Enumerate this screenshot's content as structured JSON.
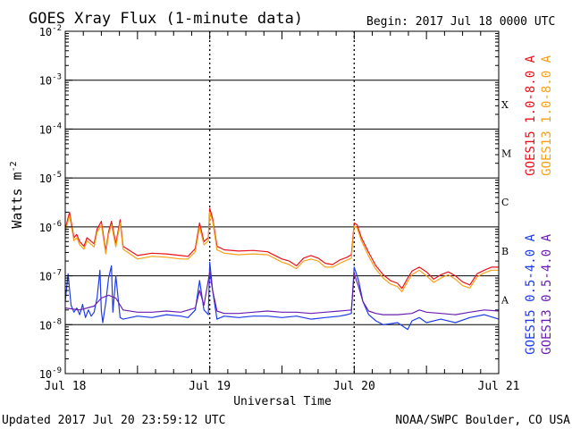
{
  "chart_data": {
    "type": "line",
    "title": "GOES Xray Flux (1-minute data)",
    "begin_label": "Begin:  2017 Jul 18 0000 UTC",
    "ylabel": "Watts m",
    "ylabel_exponent": "-2",
    "xlabel": "Universal Time",
    "y_scale": "log",
    "ylim": [
      1e-09,
      0.01
    ],
    "y_ticks": [
      {
        "base": "10",
        "exp": "-2",
        "value": 0.01
      },
      {
        "base": "10",
        "exp": "-3",
        "value": 0.001
      },
      {
        "base": "10",
        "exp": "-4",
        "value": 0.0001
      },
      {
        "base": "10",
        "exp": "-5",
        "value": 1e-05
      },
      {
        "base": "10",
        "exp": "-6",
        "value": 1e-06
      },
      {
        "base": "10",
        "exp": "-7",
        "value": 1e-07
      },
      {
        "base": "10",
        "exp": "-8",
        "value": 1e-08
      },
      {
        "base": "10",
        "exp": "-9",
        "value": 1e-09
      }
    ],
    "xlim_days": [
      0,
      3
    ],
    "x_ticks": [
      {
        "label": "Jul 18",
        "day": 0
      },
      {
        "label": "Jul 19",
        "day": 1
      },
      {
        "label": "Jul 20",
        "day": 2
      },
      {
        "label": "Jul 21",
        "day": 3
      }
    ],
    "flare_classes": [
      {
        "label": "X",
        "value": 0.00032
      },
      {
        "label": "M",
        "value": 3.2e-05
      },
      {
        "label": "C",
        "value": 3.2e-06
      },
      {
        "label": "B",
        "value": 3.2e-07
      },
      {
        "label": "A",
        "value": 3.2e-08
      }
    ],
    "grid": true,
    "series": [
      {
        "name": "GOES15 1.0-8.0 A",
        "color": "#e8131d",
        "x": [
          0,
          0.03,
          0.06,
          0.08,
          0.1,
          0.13,
          0.15,
          0.2,
          0.22,
          0.25,
          0.28,
          0.3,
          0.32,
          0.35,
          0.38,
          0.4,
          0.5,
          0.6,
          0.7,
          0.8,
          0.85,
          0.9,
          0.93,
          0.96,
          0.99,
          1.0,
          1.02,
          1.05,
          1.1,
          1.2,
          1.3,
          1.4,
          1.5,
          1.55,
          1.6,
          1.65,
          1.7,
          1.75,
          1.8,
          1.85,
          1.9,
          1.95,
          1.98,
          2.0,
          2.02,
          2.05,
          2.1,
          2.15,
          2.2,
          2.25,
          2.3,
          2.33,
          2.37,
          2.4,
          2.45,
          2.5,
          2.55,
          2.6,
          2.65,
          2.7,
          2.75,
          2.8,
          2.85,
          2.9,
          2.95,
          3.0
        ],
        "y": [
          9e-07,
          2e-06,
          6e-07,
          7e-07,
          5e-07,
          4e-07,
          6e-07,
          4.5e-07,
          9e-07,
          1.3e-06,
          3.2e-07,
          8e-07,
          1.3e-06,
          4.5e-07,
          1.4e-06,
          4e-07,
          2.6e-07,
          2.9e-07,
          2.8e-07,
          2.6e-07,
          2.5e-07,
          3.6e-07,
          1.2e-06,
          5e-07,
          6e-07,
          2.4e-06,
          1.5e-06,
          4e-07,
          3.4e-07,
          3.2e-07,
          3.3e-07,
          3.1e-07,
          2.2e-07,
          2e-07,
          1.6e-07,
          2.3e-07,
          2.6e-07,
          2.3e-07,
          1.8e-07,
          1.7e-07,
          2.1e-07,
          2.4e-07,
          2.7e-07,
          1.2e-06,
          1.1e-06,
          6e-07,
          3e-07,
          1.6e-07,
          1.05e-07,
          8e-08,
          7e-08,
          5.5e-08,
          9e-08,
          1.25e-07,
          1.5e-07,
          1.2e-07,
          8.5e-08,
          1.05e-07,
          1.2e-07,
          1e-07,
          7.5e-08,
          6.5e-08,
          1.1e-07,
          1.3e-07,
          1.5e-07,
          1.5e-07
        ]
      },
      {
        "name": "GOES13 1.0-8.0 A",
        "color": "#f6a11a",
        "x": [
          0,
          0.03,
          0.06,
          0.08,
          0.1,
          0.13,
          0.15,
          0.2,
          0.22,
          0.25,
          0.28,
          0.3,
          0.32,
          0.35,
          0.38,
          0.4,
          0.5,
          0.6,
          0.7,
          0.8,
          0.85,
          0.9,
          0.93,
          0.96,
          0.99,
          1.0,
          1.02,
          1.05,
          1.1,
          1.2,
          1.3,
          1.4,
          1.5,
          1.55,
          1.6,
          1.65,
          1.7,
          1.75,
          1.8,
          1.85,
          1.9,
          1.95,
          1.98,
          2.0,
          2.02,
          2.05,
          2.1,
          2.15,
          2.2,
          2.25,
          2.3,
          2.33,
          2.37,
          2.4,
          2.45,
          2.5,
          2.55,
          2.6,
          2.65,
          2.7,
          2.75,
          2.8,
          2.85,
          2.9,
          2.95,
          3.0
        ],
        "y": [
          8e-07,
          1.7e-06,
          5.2e-07,
          6e-07,
          4.3e-07,
          3.5e-07,
          5.2e-07,
          3.9e-07,
          7.8e-07,
          1.1e-06,
          2.8e-07,
          7e-07,
          1.1e-06,
          3.9e-07,
          1.2e-06,
          3.5e-07,
          2.2e-07,
          2.5e-07,
          2.4e-07,
          2.2e-07,
          2.2e-07,
          3.1e-07,
          1e-06,
          4.3e-07,
          5.2e-07,
          2e-06,
          1.3e-06,
          3.4e-07,
          2.9e-07,
          2.7e-07,
          2.8e-07,
          2.7e-07,
          1.9e-07,
          1.7e-07,
          1.4e-07,
          2e-07,
          2.2e-07,
          2e-07,
          1.5e-07,
          1.5e-07,
          1.8e-07,
          2.1e-07,
          2.3e-07,
          1.05e-06,
          9.5e-07,
          5.2e-07,
          2.5e-07,
          1.35e-07,
          9e-08,
          6.8e-08,
          6e-08,
          4.7e-08,
          7.7e-08,
          1.05e-07,
          1.3e-07,
          1e-07,
          7.3e-08,
          9e-08,
          1.05e-07,
          8.5e-08,
          6.3e-08,
          5.6e-08,
          9.5e-08,
          1.15e-07,
          1.3e-07,
          1.3e-07
        ]
      },
      {
        "name": "GOES15 0.5-4.0 A",
        "color": "#1f3be8",
        "x": [
          0,
          0.02,
          0.04,
          0.06,
          0.08,
          0.1,
          0.12,
          0.14,
          0.16,
          0.18,
          0.2,
          0.22,
          0.24,
          0.25,
          0.26,
          0.28,
          0.3,
          0.32,
          0.33,
          0.35,
          0.38,
          0.4,
          0.5,
          0.6,
          0.7,
          0.8,
          0.85,
          0.9,
          0.93,
          0.96,
          0.99,
          1.0,
          1.02,
          1.05,
          1.1,
          1.2,
          1.3,
          1.4,
          1.5,
          1.6,
          1.7,
          1.8,
          1.9,
          1.95,
          1.98,
          2.0,
          2.03,
          2.06,
          2.1,
          2.15,
          2.2,
          2.3,
          2.37,
          2.4,
          2.45,
          2.5,
          2.6,
          2.7,
          2.8,
          2.9,
          3.0
        ],
        "y": [
          3e-08,
          1.1e-07,
          2.5e-08,
          1.8e-08,
          2.2e-08,
          1.6e-08,
          2.6e-08,
          1.4e-08,
          2e-08,
          1.5e-08,
          1.8e-08,
          3.5e-08,
          1.3e-07,
          1.9e-08,
          1.1e-08,
          2.8e-08,
          9e-08,
          1.6e-07,
          1.8e-08,
          1e-07,
          1.4e-08,
          1.3e-08,
          1.5e-08,
          1.4e-08,
          1.6e-08,
          1.5e-08,
          1.4e-08,
          2e-08,
          8e-08,
          2e-08,
          1.6e-08,
          1.9e-07,
          5e-08,
          1.3e-08,
          1.5e-08,
          1.4e-08,
          1.5e-08,
          1.5e-08,
          1.4e-08,
          1.5e-08,
          1.3e-08,
          1.4e-08,
          1.5e-08,
          1.6e-08,
          1.7e-08,
          1.5e-07,
          8e-08,
          3e-08,
          1.6e-08,
          1.2e-08,
          1e-08,
          1.1e-08,
          8e-09,
          1.2e-08,
          1.4e-08,
          1.1e-08,
          1.3e-08,
          1.1e-08,
          1.4e-08,
          1.6e-08,
          1.3e-08
        ]
      },
      {
        "name": "GOES13 0.5-4.0 A",
        "color": "#6a1fb0",
        "x": [
          0,
          0.1,
          0.2,
          0.25,
          0.3,
          0.35,
          0.4,
          0.5,
          0.6,
          0.7,
          0.8,
          0.9,
          0.93,
          0.96,
          1.0,
          1.02,
          1.05,
          1.1,
          1.2,
          1.3,
          1.4,
          1.5,
          1.6,
          1.7,
          1.8,
          1.9,
          1.98,
          2.0,
          2.03,
          2.06,
          2.1,
          2.15,
          2.2,
          2.3,
          2.4,
          2.45,
          2.5,
          2.6,
          2.7,
          2.8,
          2.9,
          3.0
        ],
        "y": [
          2.2e-08,
          2e-08,
          2.4e-08,
          3.5e-08,
          4e-08,
          3.5e-08,
          2e-08,
          1.8e-08,
          1.8e-08,
          1.9e-08,
          1.8e-08,
          2.2e-08,
          5e-08,
          2.5e-08,
          1.2e-07,
          5e-08,
          1.9e-08,
          1.7e-08,
          1.7e-08,
          1.8e-08,
          1.9e-08,
          1.8e-08,
          1.8e-08,
          1.7e-08,
          1.8e-08,
          1.9e-08,
          2e-08,
          1.1e-07,
          6e-08,
          3e-08,
          1.9e-08,
          1.7e-08,
          1.6e-08,
          1.6e-08,
          1.7e-08,
          2e-08,
          1.8e-08,
          1.7e-08,
          1.6e-08,
          1.8e-08,
          2e-08,
          1.9e-08
        ]
      }
    ]
  },
  "footer": {
    "updated": "Updated 2017 Jul 20 23:59:12 UTC",
    "credit": "NOAA/SWPC Boulder, CO USA"
  }
}
